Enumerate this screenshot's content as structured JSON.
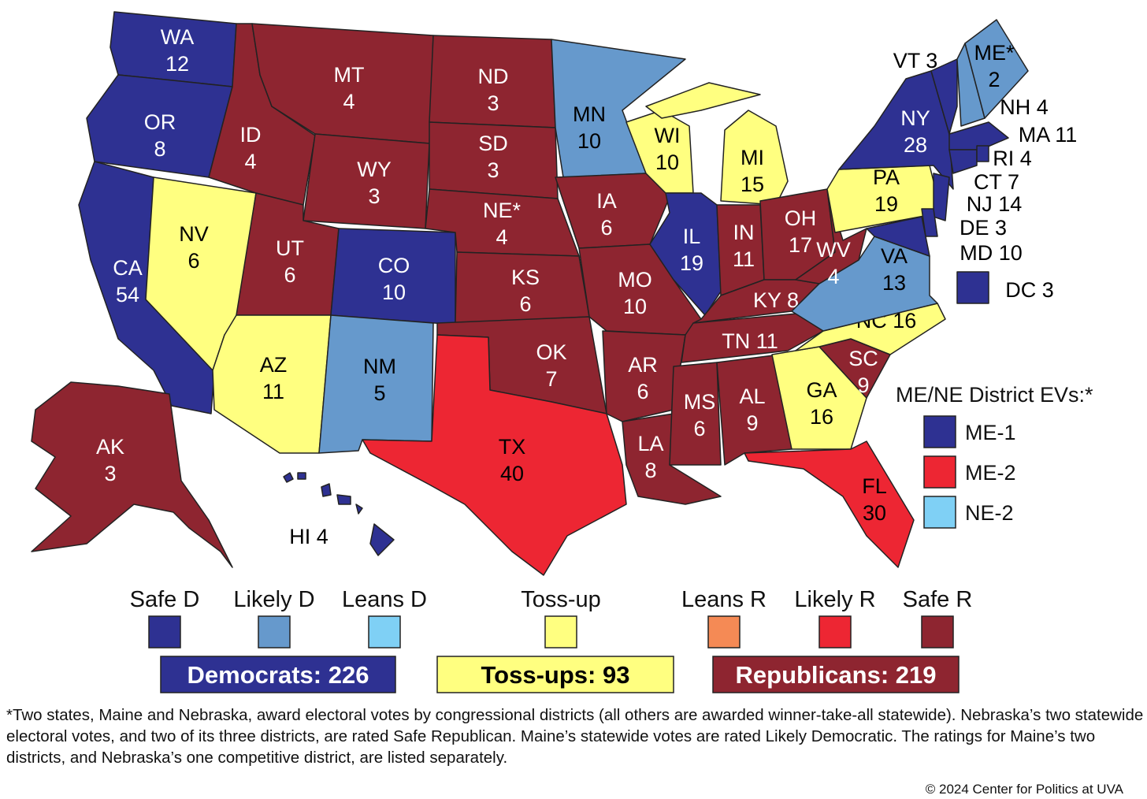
{
  "title_region": "map",
  "states": [
    {
      "abbr": "WA",
      "ev": 12,
      "rating": "Safe D"
    },
    {
      "abbr": "OR",
      "ev": 8,
      "rating": "Safe D"
    },
    {
      "abbr": "CA",
      "ev": 54,
      "rating": "Safe D"
    },
    {
      "abbr": "NV",
      "ev": 6,
      "rating": "Toss-up"
    },
    {
      "abbr": "ID",
      "ev": 4,
      "rating": "Safe R"
    },
    {
      "abbr": "MT",
      "ev": 4,
      "rating": "Safe R"
    },
    {
      "abbr": "WY",
      "ev": 3,
      "rating": "Safe R"
    },
    {
      "abbr": "UT",
      "ev": 6,
      "rating": "Safe R"
    },
    {
      "abbr": "CO",
      "ev": 10,
      "rating": "Safe D"
    },
    {
      "abbr": "AZ",
      "ev": 11,
      "rating": "Toss-up"
    },
    {
      "abbr": "NM",
      "ev": 5,
      "rating": "Likely D"
    },
    {
      "abbr": "ND",
      "ev": 3,
      "rating": "Safe R"
    },
    {
      "abbr": "SD",
      "ev": 3,
      "rating": "Safe R"
    },
    {
      "abbr": "NE*",
      "ev": 4,
      "rating": "Safe R"
    },
    {
      "abbr": "KS",
      "ev": 6,
      "rating": "Safe R"
    },
    {
      "abbr": "OK",
      "ev": 7,
      "rating": "Safe R"
    },
    {
      "abbr": "TX",
      "ev": 40,
      "rating": "Likely R"
    },
    {
      "abbr": "MN",
      "ev": 10,
      "rating": "Likely D"
    },
    {
      "abbr": "IA",
      "ev": 6,
      "rating": "Safe R"
    },
    {
      "abbr": "MO",
      "ev": 10,
      "rating": "Safe R"
    },
    {
      "abbr": "AR",
      "ev": 6,
      "rating": "Safe R"
    },
    {
      "abbr": "LA",
      "ev": 8,
      "rating": "Safe R"
    },
    {
      "abbr": "WI",
      "ev": 10,
      "rating": "Toss-up"
    },
    {
      "abbr": "MI",
      "ev": 15,
      "rating": "Toss-up"
    },
    {
      "abbr": "IL",
      "ev": 19,
      "rating": "Safe D"
    },
    {
      "abbr": "IN",
      "ev": 11,
      "rating": "Safe R"
    },
    {
      "abbr": "OH",
      "ev": 17,
      "rating": "Safe R"
    },
    {
      "abbr": "KY",
      "ev": 8,
      "rating": "Safe R"
    },
    {
      "abbr": "TN",
      "ev": 11,
      "rating": "Safe R"
    },
    {
      "abbr": "MS",
      "ev": 6,
      "rating": "Safe R"
    },
    {
      "abbr": "AL",
      "ev": 9,
      "rating": "Safe R"
    },
    {
      "abbr": "GA",
      "ev": 16,
      "rating": "Toss-up"
    },
    {
      "abbr": "FL",
      "ev": 30,
      "rating": "Likely R"
    },
    {
      "abbr": "SC",
      "ev": 9,
      "rating": "Safe R"
    },
    {
      "abbr": "NC",
      "ev": 16,
      "rating": "Toss-up"
    },
    {
      "abbr": "VA",
      "ev": 13,
      "rating": "Likely D"
    },
    {
      "abbr": "WV",
      "ev": 4,
      "rating": "Safe R"
    },
    {
      "abbr": "PA",
      "ev": 19,
      "rating": "Toss-up"
    },
    {
      "abbr": "NY",
      "ev": 28,
      "rating": "Safe D"
    },
    {
      "abbr": "VT",
      "ev": 3,
      "rating": "Safe D"
    },
    {
      "abbr": "NH",
      "ev": 4,
      "rating": "Likely D"
    },
    {
      "abbr": "ME*",
      "ev": 2,
      "rating": "Likely D"
    },
    {
      "abbr": "MA",
      "ev": 11,
      "rating": "Safe D"
    },
    {
      "abbr": "CT",
      "ev": 7,
      "rating": "Safe D"
    },
    {
      "abbr": "RI",
      "ev": 4,
      "rating": "Safe D"
    },
    {
      "abbr": "NJ",
      "ev": 14,
      "rating": "Safe D"
    },
    {
      "abbr": "DE",
      "ev": 3,
      "rating": "Safe D"
    },
    {
      "abbr": "MD",
      "ev": 10,
      "rating": "Safe D"
    },
    {
      "abbr": "DC",
      "ev": 3,
      "rating": "Safe D"
    },
    {
      "abbr": "AK",
      "ev": 3,
      "rating": "Safe R"
    },
    {
      "abbr": "HI",
      "ev": 4,
      "rating": "Safe D"
    }
  ],
  "legend": [
    {
      "name": "Safe D",
      "color": "#2e3192"
    },
    {
      "name": "Likely D",
      "color": "#6699cc"
    },
    {
      "name": "Leans D",
      "color": "#7fd0f5"
    },
    {
      "name": "Toss-up",
      "color": "#ffff80"
    },
    {
      "name": "Leans R",
      "color": "#f58a55"
    },
    {
      "name": "Likely R",
      "color": "#ed2633"
    },
    {
      "name": "Safe R",
      "color": "#8e2530"
    }
  ],
  "totals": [
    {
      "label": "Democrats: 226",
      "rating": "Safe D",
      "text_color": "#ffffff"
    },
    {
      "label": "Toss-ups: 93",
      "rating": "Toss-up",
      "text_color": "#000000"
    },
    {
      "label": "Republicans: 219",
      "rating": "Safe R",
      "text_color": "#ffffff"
    }
  ],
  "districts": {
    "title": "ME/NE District EVs:*",
    "items": [
      {
        "name": "ME-1",
        "rating": "Safe D"
      },
      {
        "name": "ME-2",
        "rating": "Likely R"
      },
      {
        "name": "NE-2",
        "rating": "Leans D"
      }
    ]
  },
  "footnote": "*Two states, Maine and Nebraska, award electoral votes by congressional districts (all others are awarded winner-take-all statewide). Nebraska’s two statewide electoral votes, and two of its three districts, are rated Safe Republican. Maine’s statewide votes are rated Likely Democratic. The ratings for Maine’s two districts, and Nebraska’s one competitive district, are listed separately.",
  "copyright": "© 2024 Center for Politics at UVA"
}
